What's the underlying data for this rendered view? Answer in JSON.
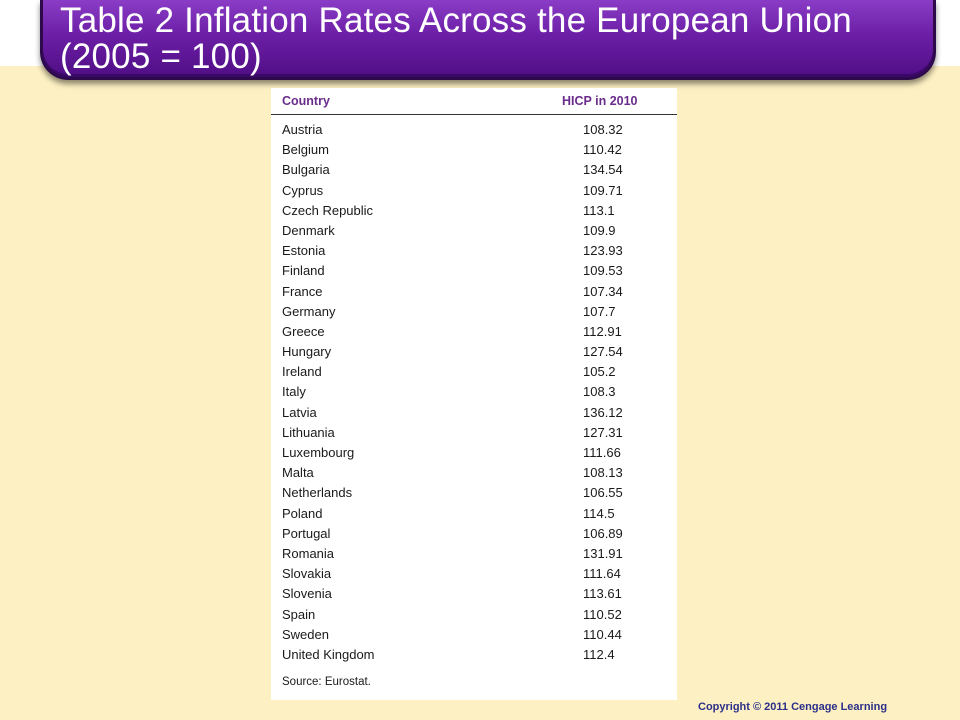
{
  "title": "Table 2 Inflation Rates Across the European Union (2005 = 100)",
  "table": {
    "headers": {
      "country": "Country",
      "hicp": "HICP in 2010"
    },
    "rows": [
      {
        "country": "Austria",
        "hicp": "108.32"
      },
      {
        "country": "Belgium",
        "hicp": "110.42"
      },
      {
        "country": "Bulgaria",
        "hicp": "134.54"
      },
      {
        "country": "Cyprus",
        "hicp": "109.71"
      },
      {
        "country": "Czech Republic",
        "hicp": "113.1"
      },
      {
        "country": "Denmark",
        "hicp": "109.9"
      },
      {
        "country": "Estonia",
        "hicp": "123.93"
      },
      {
        "country": "Finland",
        "hicp": "109.53"
      },
      {
        "country": "France",
        "hicp": "107.34"
      },
      {
        "country": "Germany",
        "hicp": "107.7"
      },
      {
        "country": "Greece",
        "hicp": "112.91"
      },
      {
        "country": "Hungary",
        "hicp": "127.54"
      },
      {
        "country": "Ireland",
        "hicp": "105.2"
      },
      {
        "country": "Italy",
        "hicp": "108.3"
      },
      {
        "country": "Latvia",
        "hicp": "136.12"
      },
      {
        "country": "Lithuania",
        "hicp": "127.31"
      },
      {
        "country": "Luxembourg",
        "hicp": "111.66"
      },
      {
        "country": "Malta",
        "hicp": "108.13"
      },
      {
        "country": "Netherlands",
        "hicp": "106.55"
      },
      {
        "country": "Poland",
        "hicp": "114.5"
      },
      {
        "country": "Portugal",
        "hicp": "106.89"
      },
      {
        "country": "Romania",
        "hicp": "131.91"
      },
      {
        "country": "Slovakia",
        "hicp": "111.64"
      },
      {
        "country": "Slovenia",
        "hicp": "113.61"
      },
      {
        "country": "Spain",
        "hicp": "110.52"
      },
      {
        "country": "Sweden",
        "hicp": "110.44"
      },
      {
        "country": "United Kingdom",
        "hicp": "112.4"
      }
    ],
    "source": "Source: Eurostat."
  },
  "copyright": "Copyright  © 2011  Cengage Learning",
  "colors": {
    "background": "#fdf0c2",
    "title_bar": "#6c1fa6",
    "header_text": "#6a2c8c",
    "copyright_text": "#2b2f8a"
  }
}
